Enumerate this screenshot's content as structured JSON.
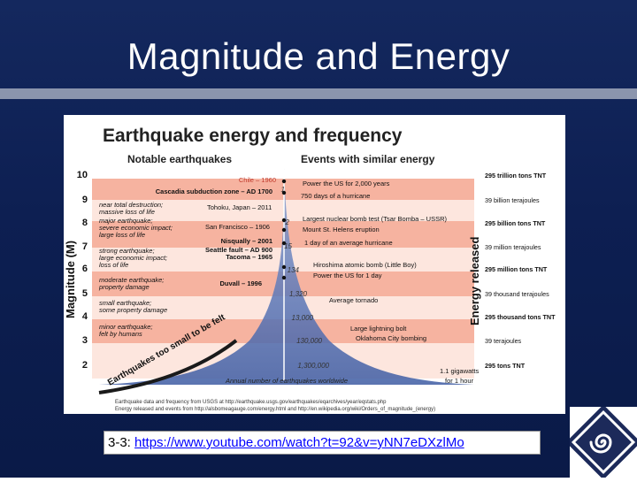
{
  "slide": {
    "title": "Magnitude and Energy",
    "caption_prefix": "3-3: ",
    "caption_link": "https://www.youtube.com/watch?t=92&v=yNN7eDXzlMo"
  },
  "colors": {
    "slide_bg": "#0d1f52",
    "band_dark": "#f6b3a0",
    "band_light": "#fde6de",
    "cone": "#4f6db0",
    "link": "#0000ff"
  },
  "icons": [
    "spiral-logo-icon"
  ],
  "diagram": {
    "title": "Earthquake energy and frequency",
    "left_heading": "Notable earthquakes",
    "right_heading": "Events with similar energy",
    "y_axis_label": "Magnitude (M)",
    "right_axis_label": "Energy released",
    "magnitudes": [
      "10",
      "9",
      "8",
      "7",
      "6",
      "5",
      "4",
      "3",
      "2"
    ],
    "notable": [
      {
        "text": "Chile – 1960",
        "bold": false,
        "red": true
      },
      {
        "text": "Cascadia subduction zone – AD 1700",
        "bold": true,
        "red": false
      },
      {
        "text": "near total destruction;",
        "bold": false,
        "red": false,
        "italic": true
      },
      {
        "text": "massive loss of life",
        "bold": false,
        "red": false,
        "italic": true
      },
      {
        "text": "Tohoku, Japan – 2011",
        "bold": false,
        "red": false
      },
      {
        "text": "major earthquake;",
        "bold": false,
        "red": false,
        "italic": true
      },
      {
        "text": "severe economic impact;",
        "bold": false,
        "red": false,
        "italic": true
      },
      {
        "text": "large loss of life",
        "bold": false,
        "red": false,
        "italic": true
      },
      {
        "text": "San Francisco – 1906",
        "bold": false,
        "red": false
      },
      {
        "text": "Nisqually – 2001",
        "bold": true,
        "red": false
      },
      {
        "text": "strong earthquake;",
        "bold": false,
        "red": false,
        "italic": true
      },
      {
        "text": "large economic impact;",
        "bold": false,
        "red": false,
        "italic": true
      },
      {
        "text": "loss of life",
        "bold": false,
        "red": false,
        "italic": true
      },
      {
        "text": "Seattle fault – AD 900",
        "bold": true,
        "red": false
      },
      {
        "text": "Tacoma – 1965",
        "bold": true,
        "red": false
      },
      {
        "text": "moderate earthquake;",
        "bold": false,
        "red": false,
        "italic": true
      },
      {
        "text": "property damage",
        "bold": false,
        "red": false,
        "italic": true
      },
      {
        "text": "Duvall – 1996",
        "bold": true,
        "red": false
      },
      {
        "text": "small earthquake;",
        "bold": false,
        "red": false,
        "italic": true
      },
      {
        "text": "some property damage",
        "bold": false,
        "red": false,
        "italic": true
      },
      {
        "text": "minor earthquake;",
        "bold": false,
        "red": false,
        "italic": true
      },
      {
        "text": "felt by humans",
        "bold": false,
        "red": false,
        "italic": true
      }
    ],
    "counts": [
      "1",
      "2",
      "15",
      "134",
      "1,320",
      "13,000",
      "130,000",
      "1,300,000"
    ],
    "annual_count_label": "Annual number of earthquakes worldwide",
    "too_small_label": "Earthquakes too small to be felt",
    "events": [
      "Power the US for 2,000 years",
      "750 days of a hurricane",
      "Largest nuclear bomb test (Tsar Bomba – USSR)",
      "Mount St. Helens eruption",
      "1 day of an average hurricane",
      "Hiroshima atomic bomb (Little Boy)",
      "Power the US for 1 day",
      "Average tornado",
      "Large lightning bolt",
      "Oklahoma City bombing",
      "1.1 gigawatts",
      "for 1 hour"
    ],
    "energy": [
      {
        "text": "295 trillion tons TNT",
        "bold": true
      },
      {
        "text": "39 billion terajoules",
        "bold": false
      },
      {
        "text": "295 billion tons TNT",
        "bold": true
      },
      {
        "text": "39 million terajoules",
        "bold": false
      },
      {
        "text": "295 million tons TNT",
        "bold": true
      },
      {
        "text": "39 thousand terajoules",
        "bold": false
      },
      {
        "text": "295 thousand tons TNT",
        "bold": true
      },
      {
        "text": "39 terajoules",
        "bold": false
      },
      {
        "text": "295 tons TNT",
        "bold": true
      }
    ],
    "source_line_1": "Earthquake data and frequency from USGS at http://earthquake.usgs.gov/earthquakes/eqarchives/year/eqstats.php",
    "source_line_2": "Energy released and events from http://alsbomeagauge.com/energy.html and http://en.wikipedia.org/wiki/Orders_of_magnitude_(energy)"
  }
}
